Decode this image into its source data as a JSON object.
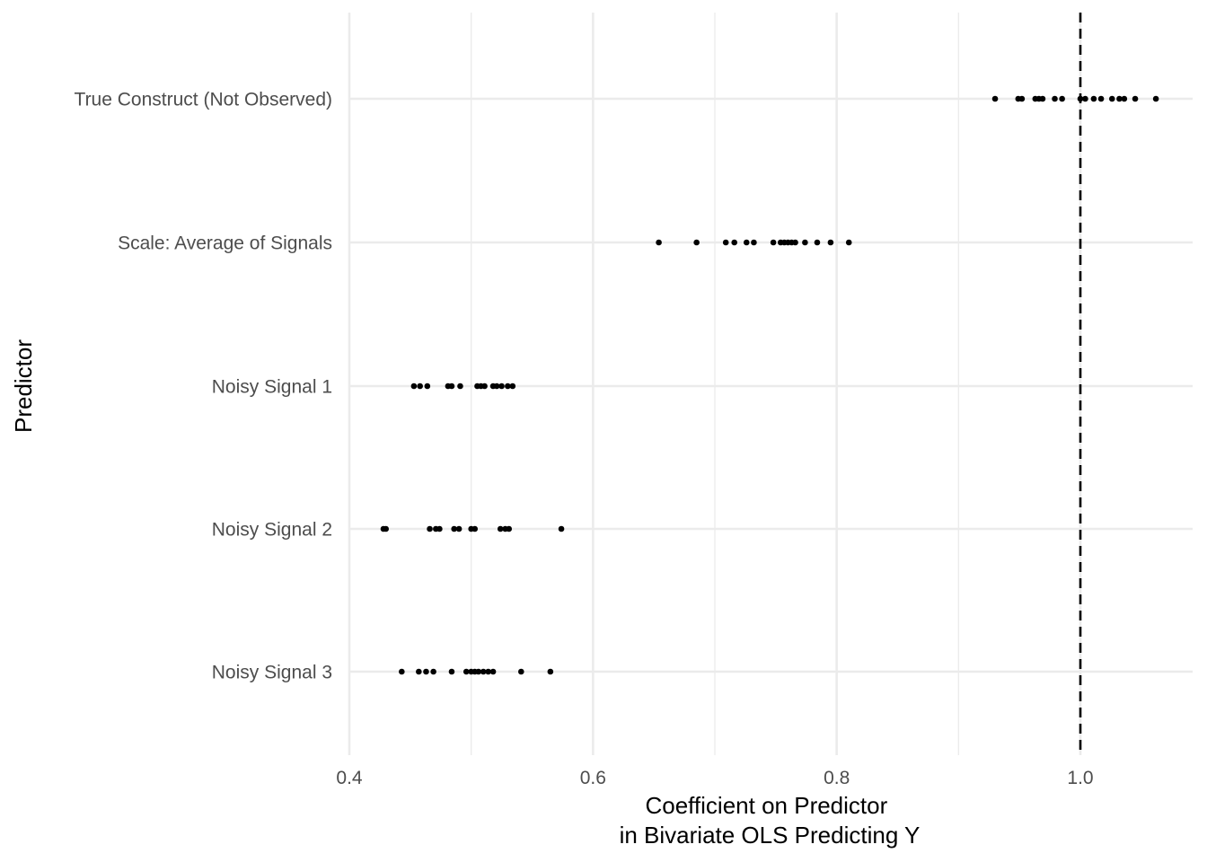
{
  "chart_data": {
    "type": "scatter",
    "title": "",
    "xlabel_lines": [
      "Coefficient on Predictor",
      "in Bivariate OLS Predicting Y"
    ],
    "ylabel": "Predictor",
    "xlim": [
      0.4,
      1.09
    ],
    "x_ticks": [
      0.4,
      0.6,
      0.8,
      1.0
    ],
    "x_tick_labels": [
      "0.4",
      "0.6",
      "0.8",
      "1.0"
    ],
    "x_minor_ticks": [
      0.5,
      0.7,
      0.9
    ],
    "categories": [
      "True Construct (Not Observed)",
      "Scale: Average of Signals",
      "Noisy Signal 1",
      "Noisy Signal 2",
      "Noisy Signal 3"
    ],
    "reference_line": {
      "x": 1.0,
      "style": "dashed"
    },
    "grid": true,
    "legend": "none",
    "series": [
      {
        "category": "True Construct (Not Observed)",
        "values": [
          0.93,
          0.949,
          0.952,
          0.963,
          0.966,
          0.969,
          0.979,
          0.985,
          1.0,
          1.004,
          1.011,
          1.017,
          1.026,
          1.032,
          1.036,
          1.045,
          1.062
        ]
      },
      {
        "category": "Scale: Average of Signals",
        "values": [
          0.654,
          0.685,
          0.709,
          0.716,
          0.726,
          0.732,
          0.748,
          0.754,
          0.757,
          0.76,
          0.763,
          0.766,
          0.774,
          0.784,
          0.795,
          0.81
        ]
      },
      {
        "category": "Noisy Signal 1",
        "values": [
          0.453,
          0.458,
          0.464,
          0.481,
          0.484,
          0.491,
          0.505,
          0.508,
          0.511,
          0.518,
          0.521,
          0.525,
          0.53,
          0.534
        ]
      },
      {
        "category": "Noisy Signal 2",
        "values": [
          0.428,
          0.43,
          0.466,
          0.471,
          0.474,
          0.486,
          0.49,
          0.5,
          0.503,
          0.524,
          0.528,
          0.531,
          0.574
        ]
      },
      {
        "category": "Noisy Signal 3",
        "values": [
          0.443,
          0.457,
          0.463,
          0.469,
          0.484,
          0.496,
          0.5,
          0.503,
          0.506,
          0.51,
          0.514,
          0.518,
          0.541,
          0.565
        ]
      }
    ]
  }
}
